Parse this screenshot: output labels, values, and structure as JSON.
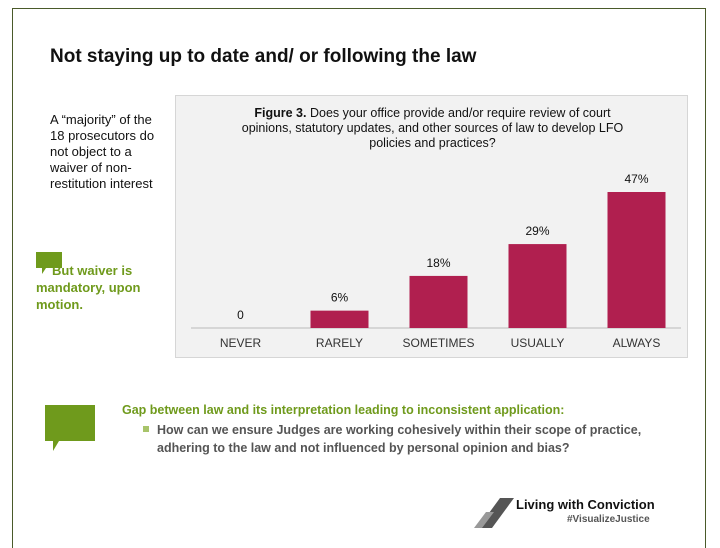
{
  "slide": {
    "title": "Not staying up to date and/ or following the law",
    "side_note": "A “majority” of the 18 prosecutors do not object to a waiver of non-restitution interest",
    "callout": "But waiver is mandatory, upon motion.",
    "bottom_heading": "Gap between law and its interpretation leading to inconsistent application:",
    "bottom_bullet": "How can we ensure Judges are working cohesively within their scope of practice, adhering to the law and not influenced by personal opinion and bias?",
    "logo_name": "Living with Conviction",
    "logo_tag": "#VisualizeJustice"
  },
  "chart_data": {
    "type": "bar",
    "figure_label": "Figure 3.",
    "title": "Does your office provide and/or require review of court opinions, statutory updates, and other sources of law to develop LFO policies and practices?",
    "categories": [
      "NEVER",
      "RARELY",
      "SOMETIMES",
      "USUALLY",
      "ALWAYS"
    ],
    "values": [
      0,
      6,
      18,
      29,
      47
    ],
    "value_labels": [
      "0",
      "6%",
      "18%",
      "29%",
      "47%"
    ],
    "color": "#b01f4f"
  }
}
